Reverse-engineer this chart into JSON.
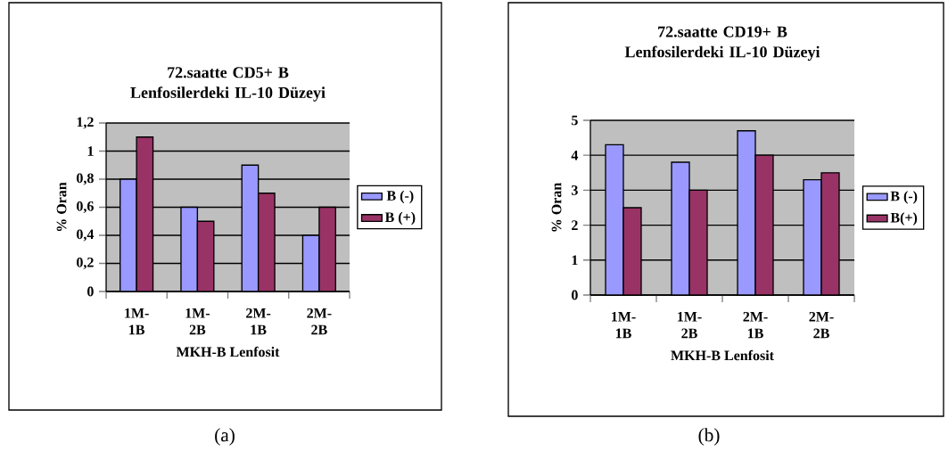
{
  "chart_data": [
    {
      "type": "bar",
      "title": "72.saatte CD5+ B Lenfosilerdeki IL-10 Düzeyi",
      "xlabel": "MKH-B Lenfosit",
      "ylabel": "% Oran",
      "categories": [
        "1M-1B",
        "1M-2B",
        "2M-1B",
        "2M-2B"
      ],
      "series": [
        {
          "name": "B (-)",
          "color": "#9999ff",
          "values": [
            0.8,
            0.6,
            0.9,
            0.4
          ]
        },
        {
          "name": "B (+)",
          "color": "#993366",
          "values": [
            1.1,
            0.5,
            0.7,
            0.6
          ]
        }
      ],
      "ylim": [
        0,
        1.2
      ],
      "yticks": [
        0,
        {
          "value": 0.2,
          "label": "0,2"
        },
        {
          "value": 0.4,
          "label": "0,4"
        },
        {
          "value": 0.6,
          "label": "0,6"
        },
        {
          "value": 0.8,
          "label": "0,8"
        },
        1,
        {
          "value": 1.2,
          "label": "1,2"
        }
      ],
      "grid": "y",
      "legend": "right",
      "annotations": [
        "(a)"
      ]
    },
    {
      "type": "bar",
      "title": "72.saatte CD19+ B Lenfosilerdeki IL-10 Düzeyi",
      "xlabel": "MKH-B Lenfosit",
      "ylabel": "% Oran",
      "categories": [
        "1M-1B",
        "1M-2B",
        "2M-1B",
        "2M-2B"
      ],
      "series": [
        {
          "name": "B (-)",
          "color": "#9999ff",
          "values": [
            4.3,
            3.8,
            4.7,
            3.3
          ]
        },
        {
          "name": "B(+)",
          "color": "#993366",
          "values": [
            2.5,
            3.0,
            4.0,
            3.5
          ]
        }
      ],
      "ylim": [
        0,
        5
      ],
      "yticks": [
        0,
        1,
        2,
        3,
        4,
        5
      ],
      "grid": "y",
      "legend": "right",
      "annotations": [
        "(b)"
      ]
    }
  ]
}
